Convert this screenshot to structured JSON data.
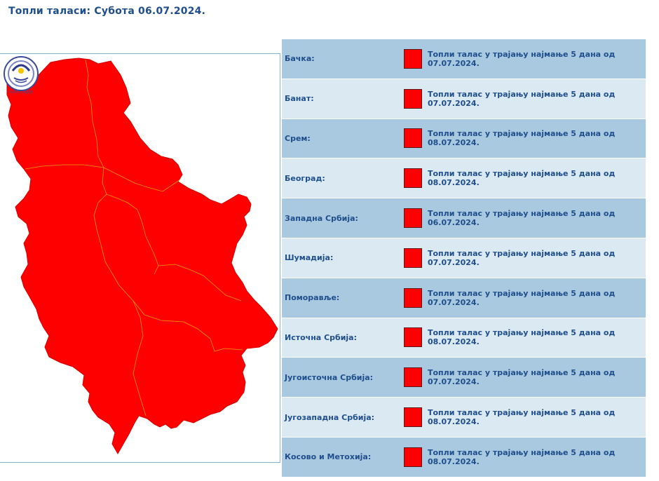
{
  "page": {
    "title": "Топли таласи: Субота  06.07.2024."
  },
  "colors": {
    "warning_red": "#ff0000",
    "row_dark": "#a9c9e0",
    "row_light": "#dbe9f3",
    "text_blue": "#1f4e8c"
  },
  "map": {
    "logo_icon": "rhmz-srbije-logo-icon",
    "logo_text": "РХМЗ СРБИЈЕ",
    "warning_level_color": "#ff0000"
  },
  "regions": [
    {
      "name": "Бачка:",
      "message": "Топли талас у трајању најмање 5 дана од 07.07.2024.",
      "level_color": "#ff0000"
    },
    {
      "name": "Банат:",
      "message": "Топли талас у трајању најмање 5 дана од 07.07.2024.",
      "level_color": "#ff0000"
    },
    {
      "name": "Срем:",
      "message": "Топли талас у трајању најмање 5 дана од 08.07.2024.",
      "level_color": "#ff0000"
    },
    {
      "name": "Београд:",
      "message": "Топли талас у трајању најмање 5 дана од 08.07.2024.",
      "level_color": "#ff0000"
    },
    {
      "name": "Западна Србија:",
      "message": "Топли талас у трајању најмање 5 дана од 06.07.2024.",
      "level_color": "#ff0000"
    },
    {
      "name": "Шумадија:",
      "message": "Топли талас у трајању најмање 5 дана од 07.07.2024.",
      "level_color": "#ff0000"
    },
    {
      "name": "Поморавље:",
      "message": "Топли талас у трајању најмање 5 дана од 07.07.2024.",
      "level_color": "#ff0000"
    },
    {
      "name": "Источна Србија:",
      "message": "Топли талас у трајању најмање 5 дана од 08.07.2024.",
      "level_color": "#ff0000"
    },
    {
      "name": "Југоисточна Србија:",
      "message": "Топли талас у трајању најмање 5 дана од 07.07.2024.",
      "level_color": "#ff0000"
    },
    {
      "name": "Југозападна Србија:",
      "message": "Топли талас у трајању најмање 5 дана од 08.07.2024.",
      "level_color": "#ff0000"
    },
    {
      "name": "Косово и Метохија:",
      "message": "Топли талас у трајању најмање 5 дана од 08.07.2024.",
      "level_color": "#ff0000"
    }
  ]
}
